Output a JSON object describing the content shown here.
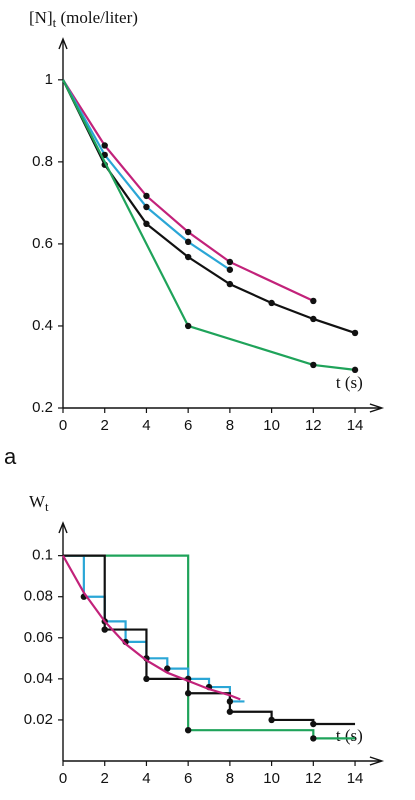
{
  "chart_data": [
    {
      "type": "line",
      "ylabel": {
        "main": "[N]",
        "sub": "t",
        "rest": " (mole/liter)"
      },
      "xlabel": "t (s)",
      "panel": "a",
      "xlim": [
        0,
        15
      ],
      "xticks": [
        0,
        2,
        4,
        6,
        8,
        10,
        12,
        14
      ],
      "ylim": [
        0.2,
        1.08
      ],
      "yticks": [
        0.2,
        0.4,
        0.6,
        0.8,
        1
      ],
      "series": [
        {
          "color": "#c2227a",
          "x": [
            0,
            2,
            4,
            6,
            8,
            12
          ],
          "values": [
            1,
            0.84,
            0.717,
            0.629,
            0.556,
            0.461
          ]
        },
        {
          "color": "#2aa6d6",
          "x": [
            0,
            2,
            4,
            6,
            8
          ],
          "values": [
            1,
            0.817,
            0.69,
            0.605,
            0.537
          ]
        },
        {
          "color": "#111111",
          "x": [
            0,
            2,
            4,
            6,
            8,
            10,
            12,
            14
          ],
          "values": [
            1,
            0.793,
            0.649,
            0.568,
            0.502,
            0.456,
            0.417,
            0.383
          ]
        },
        {
          "color": "#1fa35a",
          "x": [
            0,
            6,
            12,
            14
          ],
          "values": [
            1,
            0.4,
            0.305,
            0.293
          ]
        }
      ]
    },
    {
      "type": "step",
      "ylabel": {
        "main": "W",
        "sub": "t"
      },
      "xlabel": "t (s)",
      "xlim": [
        0,
        15
      ],
      "xticks": [
        0,
        2,
        4,
        6,
        8,
        10,
        12,
        14
      ],
      "ylim": [
        0,
        0.112
      ],
      "yticks": [
        0.02,
        0.04,
        0.06,
        0.08,
        0.1
      ],
      "series": [
        {
          "color": "#1fa35a",
          "step": true,
          "x": [
            0,
            6,
            12,
            14
          ],
          "values": [
            0.1,
            0.015,
            0.011,
            0.011
          ]
        },
        {
          "color": "#2aa6d6",
          "step": true,
          "x": [
            0,
            1,
            2,
            3,
            4,
            5,
            6,
            7,
            8,
            8.7
          ],
          "values": [
            0.1,
            0.08,
            0.068,
            0.058,
            0.05,
            0.045,
            0.04,
            0.036,
            0.029,
            0.029
          ]
        },
        {
          "color": "#111111",
          "step": true,
          "x": [
            0,
            2,
            4,
            6,
            8,
            10,
            12,
            14
          ],
          "values": [
            0.1,
            0.064,
            0.04,
            0.033,
            0.024,
            0.02,
            0.018,
            0.018
          ]
        },
        {
          "color": "#c2227a",
          "step": false,
          "x": [
            0,
            1,
            2,
            3,
            4,
            5,
            6,
            7,
            8,
            8.5
          ],
          "values": [
            0.1,
            0.082,
            0.068,
            0.057,
            0.049,
            0.043,
            0.039,
            0.035,
            0.032,
            0.03
          ]
        }
      ]
    }
  ]
}
